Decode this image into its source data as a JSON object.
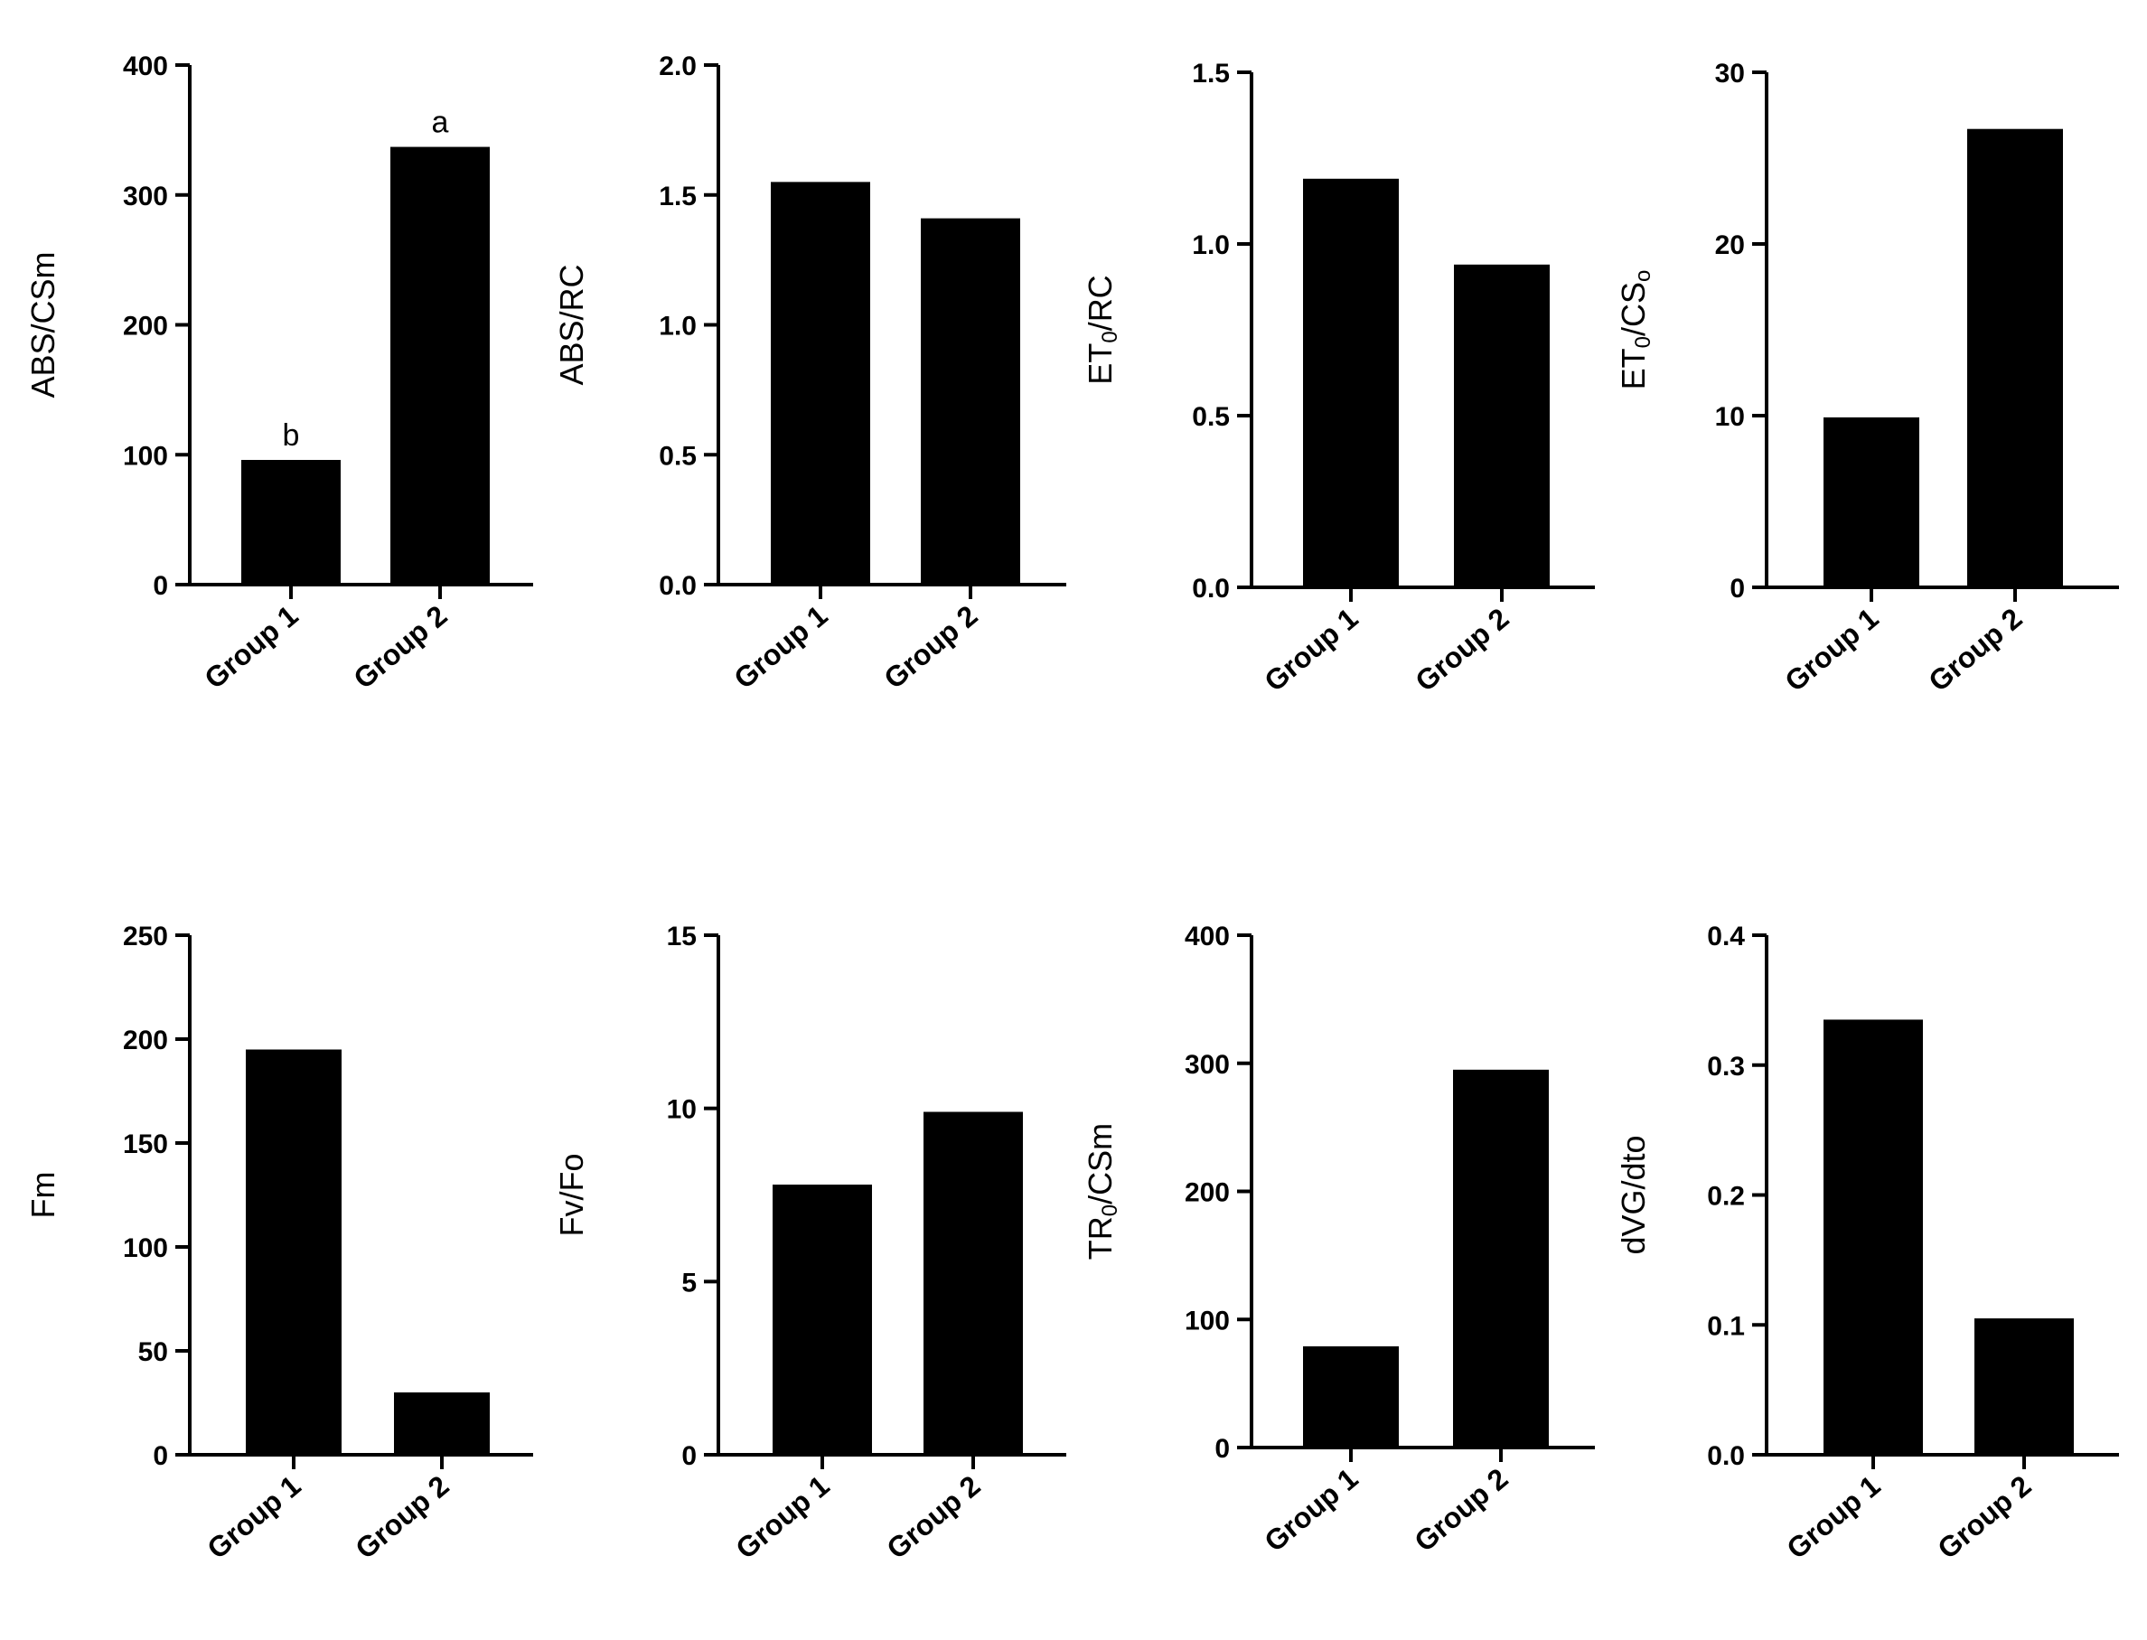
{
  "chart_data": [
    {
      "type": "bar",
      "categories": [
        "Group 1",
        "Group 2"
      ],
      "values": [
        96,
        337
      ],
      "ylabel": "ABS/CSm",
      "ylim": [
        0,
        400
      ],
      "yticks": [
        0,
        100,
        200,
        300,
        400
      ],
      "yticklabels": [
        "0",
        "100",
        "200",
        "300",
        "400"
      ],
      "bar_labels": [
        "b",
        "a"
      ]
    },
    {
      "type": "bar",
      "categories": [
        "Group 1",
        "Group 2"
      ],
      "values": [
        1.55,
        1.41
      ],
      "ylabel": "ABS/RC",
      "ylim": [
        0,
        2.0
      ],
      "yticks": [
        0,
        0.5,
        1.0,
        1.5,
        2.0
      ],
      "yticklabels": [
        "0.0",
        "0.5",
        "1.0",
        "1.5",
        "2.0"
      ]
    },
    {
      "type": "bar",
      "categories": [
        "Group 1",
        "Group 2"
      ],
      "values": [
        1.19,
        0.94
      ],
      "ylabel": "ET0/RC",
      "ylabel_parts": [
        {
          "t": "ET"
        },
        {
          "t": "0",
          "sub": true
        },
        {
          "t": "/RC"
        }
      ],
      "ylim": [
        0,
        1.5
      ],
      "yticks": [
        0,
        0.5,
        1.0,
        1.5
      ],
      "yticklabels": [
        "0.0",
        "0.5",
        "1.0",
        "1.5"
      ]
    },
    {
      "type": "bar",
      "categories": [
        "Group 1",
        "Group 2"
      ],
      "values": [
        9.9,
        26.7
      ],
      "ylabel": "ET0/CSo",
      "ylabel_parts": [
        {
          "t": "ET"
        },
        {
          "t": "0",
          "sub": true
        },
        {
          "t": "/CS"
        },
        {
          "t": "o",
          "sub": true
        }
      ],
      "ylim": [
        0,
        30
      ],
      "yticks": [
        0,
        10,
        20,
        30
      ],
      "yticklabels": [
        "0",
        "10",
        "20",
        "30"
      ]
    },
    {
      "type": "bar",
      "categories": [
        "Group 1",
        "Group 2"
      ],
      "values": [
        195,
        30
      ],
      "ylabel": "Fm",
      "ylim": [
        0,
        250
      ],
      "yticks": [
        0,
        50,
        100,
        150,
        200,
        250
      ],
      "yticklabels": [
        "0",
        "50",
        "100",
        "150",
        "200",
        "250"
      ]
    },
    {
      "type": "bar",
      "categories": [
        "Group 1",
        "Group 2"
      ],
      "values": [
        7.8,
        9.9
      ],
      "ylabel": "Fv/Fo",
      "ylim": [
        0,
        15
      ],
      "yticks": [
        0,
        5,
        10,
        15
      ],
      "yticklabels": [
        "0",
        "5",
        "10",
        "15"
      ]
    },
    {
      "type": "bar",
      "categories": [
        "Group 1",
        "Group 2"
      ],
      "values": [
        79,
        295
      ],
      "ylabel": "TR0/CSm",
      "ylabel_parts": [
        {
          "t": "TR"
        },
        {
          "t": "0",
          "sub": true
        },
        {
          "t": "/CSm"
        }
      ],
      "ylim": [
        0,
        400
      ],
      "yticks": [
        0,
        100,
        200,
        300,
        400
      ],
      "yticklabels": [
        "0",
        "100",
        "200",
        "300",
        "400"
      ]
    },
    {
      "type": "bar",
      "categories": [
        "Group 1",
        "Group 2"
      ],
      "values": [
        0.335,
        0.105
      ],
      "ylabel": "dVG/dto",
      "ylim": [
        0,
        0.4
      ],
      "yticks": [
        0,
        0.1,
        0.2,
        0.3,
        0.4
      ],
      "yticklabels": [
        "0.0",
        "0.1",
        "0.2",
        "0.3",
        "0.4"
      ]
    }
  ]
}
